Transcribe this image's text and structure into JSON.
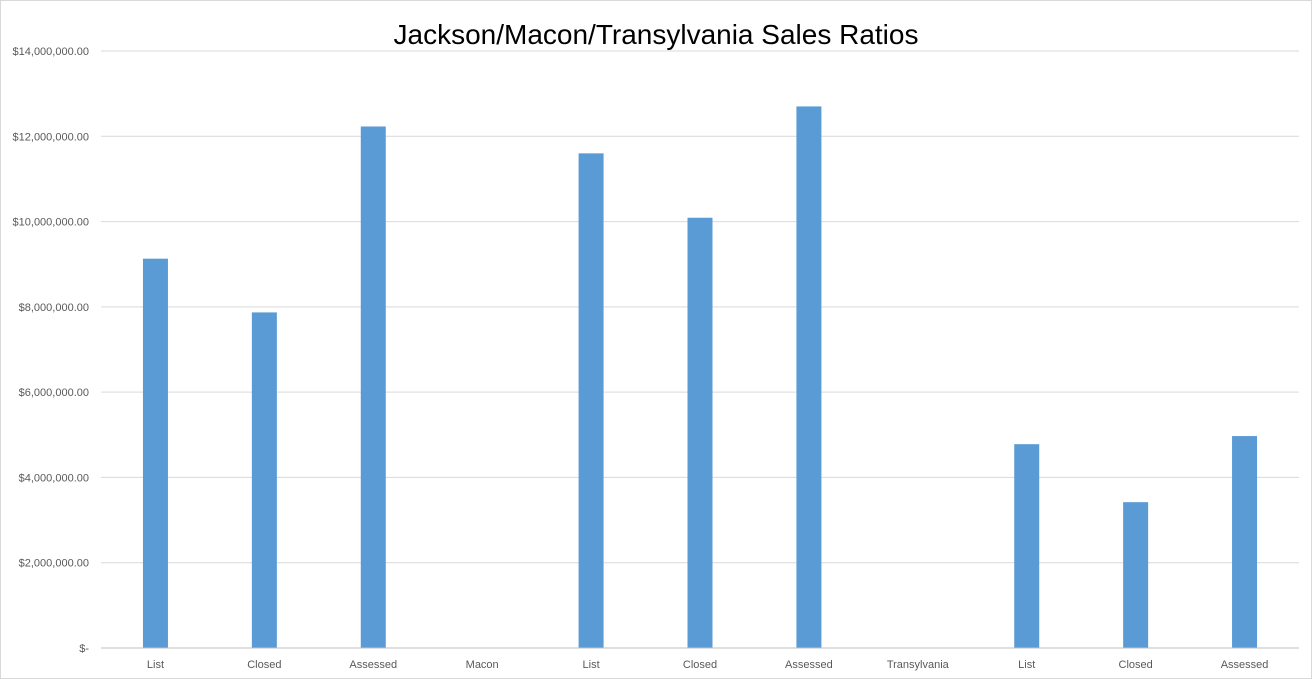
{
  "chart_data": {
    "type": "bar",
    "title": "Jackson/Macon/Transylvania Sales Ratios",
    "categories": [
      "List",
      "Closed",
      "Assessed",
      "Macon",
      "List",
      "Closed",
      "Assessed",
      "Transylvania",
      "List",
      "Closed",
      "Assessed"
    ],
    "values": [
      9130000,
      7870000,
      12230000,
      null,
      11600000,
      10090000,
      12700000,
      null,
      4780000,
      3420000,
      4970000
    ],
    "ylim": [
      0,
      14000000
    ],
    "yticks": [
      0,
      2000000,
      4000000,
      6000000,
      8000000,
      10000000,
      12000000,
      14000000
    ],
    "ytick_labels": [
      "$-",
      "$2,000,000.00",
      "$4,000,000.00",
      "$6,000,000.00",
      "$8,000,000.00",
      "$10,000,000.00",
      "$12,000,000.00",
      "$14,000,000.00"
    ],
    "xlabel": "",
    "ylabel": "",
    "grid": true,
    "legend": "none",
    "bar_color": "#5b9bd5",
    "grid_color": "#d9d9d9",
    "axis_color": "#bfbfbf"
  }
}
